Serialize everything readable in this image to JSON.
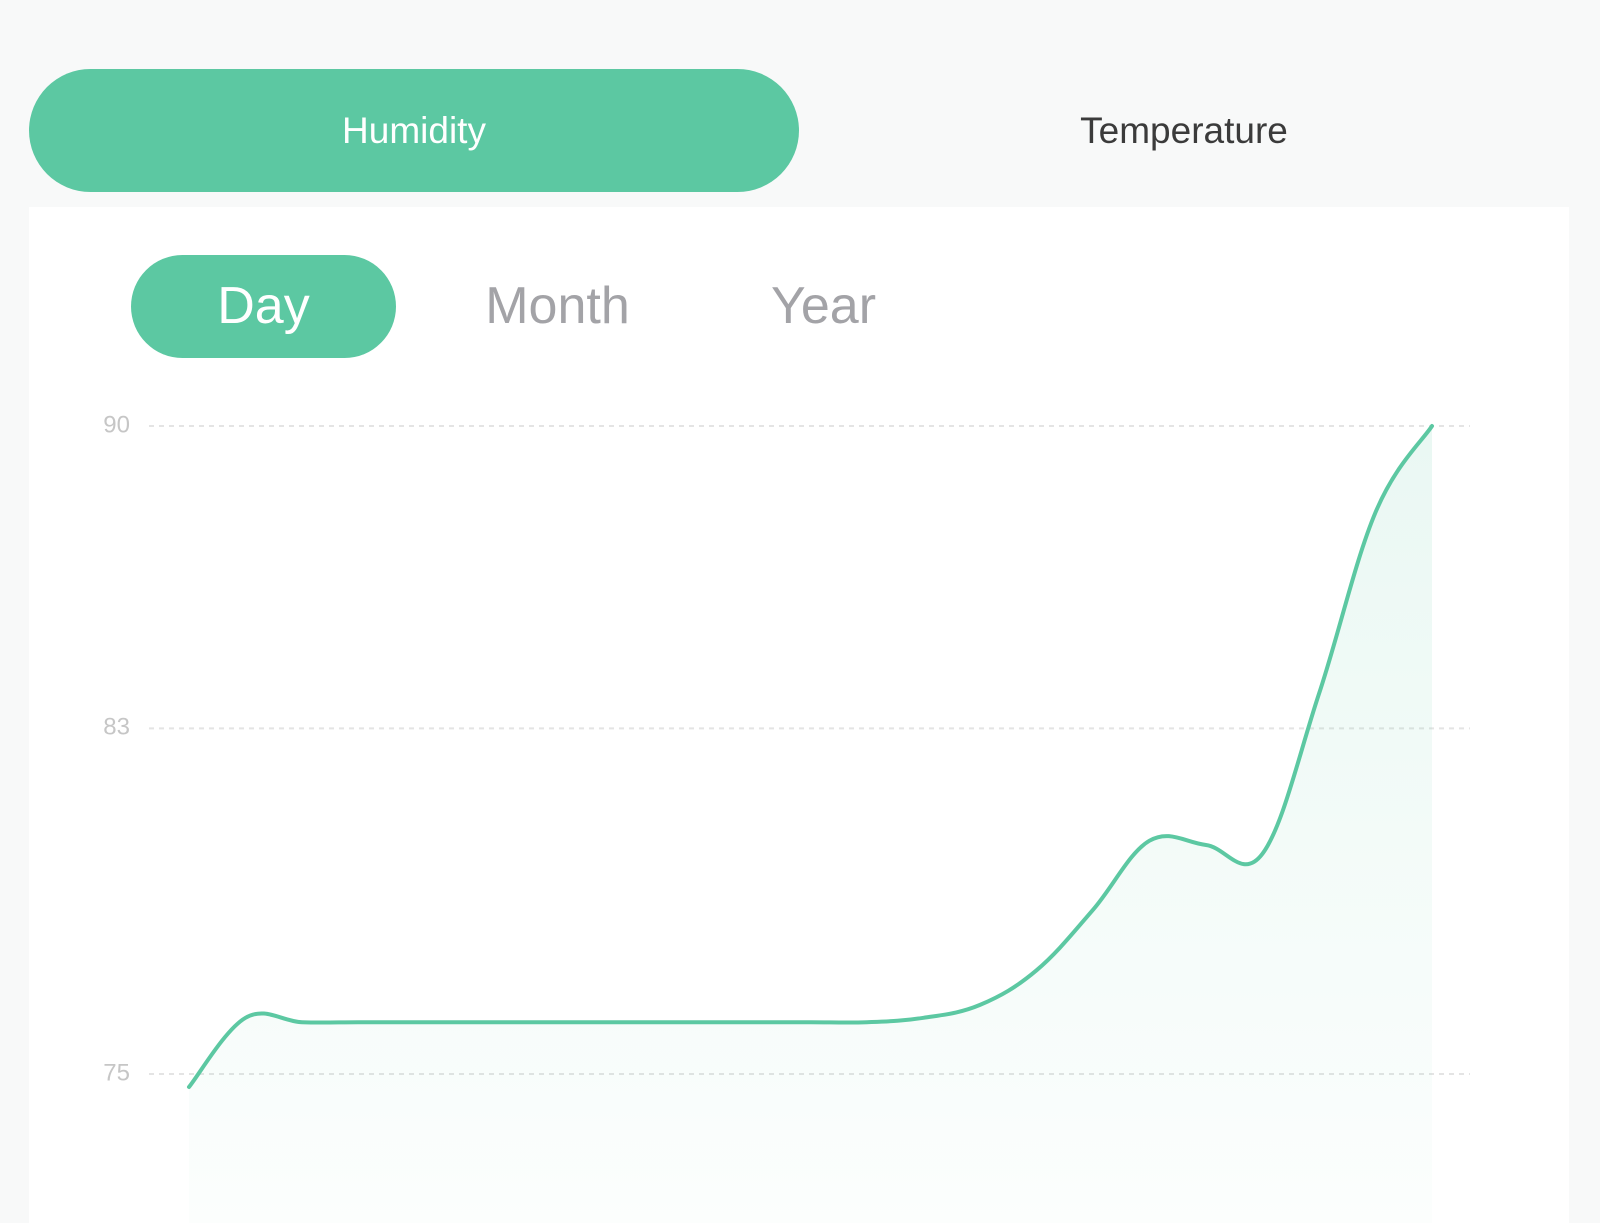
{
  "main_tabs": [
    {
      "label": "Humidity",
      "active": true
    },
    {
      "label": "Temperature",
      "active": false
    }
  ],
  "period_tabs": [
    {
      "label": "Day",
      "active": true
    },
    {
      "label": "Month",
      "active": false
    },
    {
      "label": "Year",
      "active": false
    }
  ],
  "colors": {
    "accent": "#5cc8a2",
    "background": "#f8f9f9",
    "card": "#ffffff",
    "inactive_text": "#a3a3a7",
    "grid": "#e4e4e4",
    "tick_text": "#c6c6c6"
  },
  "chart_data": {
    "type": "area",
    "title": "",
    "xlabel": "",
    "ylabel": "",
    "y_ticks": [
      "90",
      "83",
      "75"
    ],
    "y_tick_values": [
      90,
      83,
      75
    ],
    "grid": "horizontal dashed",
    "smooth": true,
    "series": [
      {
        "values": [
          74.7,
          76.3,
          76.2,
          76.2,
          76.2,
          76.2,
          76.2,
          76.2,
          76.2,
          76.2,
          76.2,
          76.2,
          76.2,
          76.3,
          76.6,
          77.4,
          78.8,
          80.4,
          80.3,
          80.1,
          83.8,
          88.0,
          90.0
        ]
      }
    ]
  }
}
